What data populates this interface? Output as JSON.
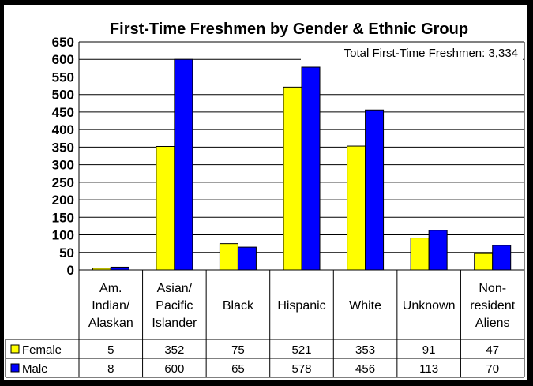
{
  "chart_data": {
    "type": "bar",
    "title": "First-Time Freshmen by Gender & Ethnic Group",
    "annotation": "Total First-Time Freshmen: 3,334",
    "categories": [
      [
        "Am.",
        "Indian/",
        "Alaskan"
      ],
      [
        "Asian/",
        "Pacific",
        "Islander"
      ],
      [
        "Black"
      ],
      [
        "Hispanic"
      ],
      [
        "White"
      ],
      [
        "Unknown"
      ],
      [
        "Non-",
        "resident",
        "Aliens"
      ]
    ],
    "series": [
      {
        "name": "Female",
        "color": "#ffff00",
        "values": [
          5,
          352,
          75,
          521,
          353,
          91,
          47
        ]
      },
      {
        "name": "Male",
        "color": "#0000ff",
        "values": [
          8,
          600,
          65,
          578,
          456,
          113,
          70
        ]
      }
    ],
    "y_ticks": [
      0,
      50,
      100,
      150,
      200,
      250,
      300,
      350,
      400,
      450,
      500,
      550,
      600,
      650
    ],
    "ylim": [
      0,
      650
    ],
    "grid": true,
    "legend": "data-table"
  }
}
